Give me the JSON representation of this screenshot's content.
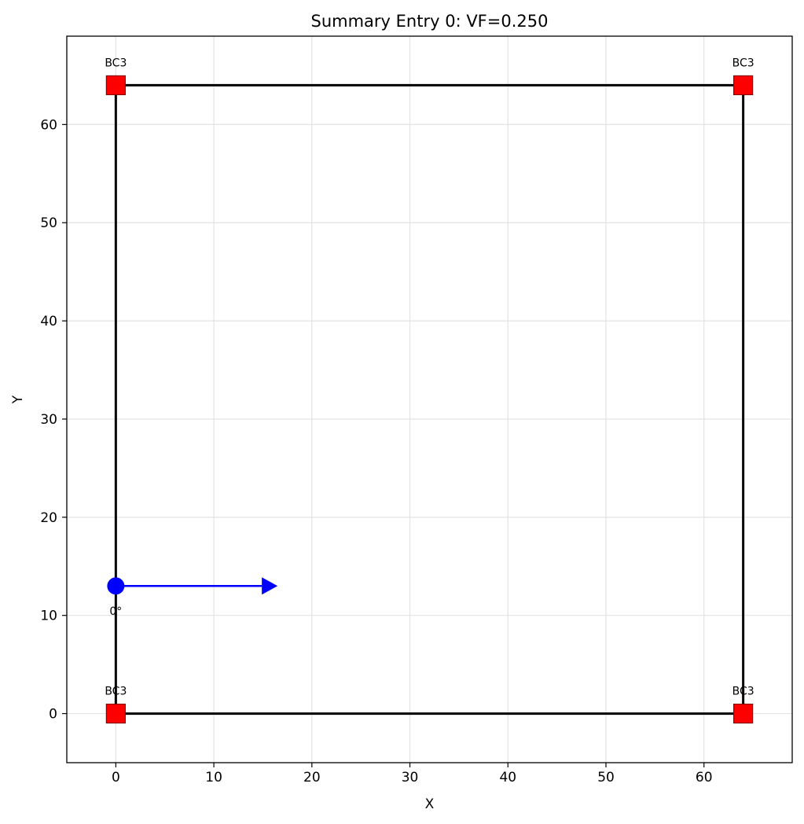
{
  "chart_data": {
    "type": "scatter",
    "title": "Summary Entry 0: VF=0.250",
    "xlabel": "X",
    "ylabel": "Y",
    "xlim": [
      -5,
      69
    ],
    "ylim": [
      -5,
      69
    ],
    "xticks": [
      0,
      10,
      20,
      30,
      40,
      50,
      60
    ],
    "yticks": [
      0,
      10,
      20,
      30,
      40,
      50,
      60
    ],
    "grid": true,
    "legend": "none",
    "boundary": {
      "corners": [
        [
          0,
          0
        ],
        [
          64,
          0
        ],
        [
          64,
          64
        ],
        [
          0,
          64
        ]
      ],
      "color": "#000000"
    },
    "supports": {
      "color": "#ff0000",
      "marker": "square",
      "points": [
        {
          "x": 0,
          "y": 64,
          "label": "BC3"
        },
        {
          "x": 64,
          "y": 64,
          "label": "BC3"
        },
        {
          "x": 0,
          "y": 0,
          "label": "BC3"
        },
        {
          "x": 64,
          "y": 0,
          "label": "BC3"
        }
      ]
    },
    "loads": {
      "color": "#0000ff",
      "points": [
        {
          "x": 0,
          "y": 13,
          "angle_deg": 0,
          "length": 16.5,
          "label": "0°"
        }
      ]
    }
  }
}
